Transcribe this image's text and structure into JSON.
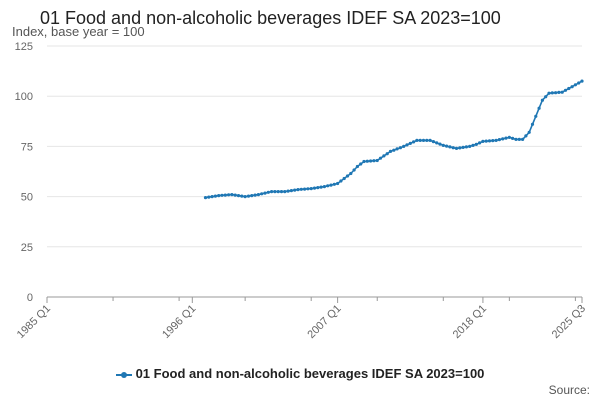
{
  "colors": {
    "series": "#1f77b4",
    "grid": "#e6e6e6",
    "axis": "#999999"
  },
  "chart_data": {
    "type": "line",
    "title": "01 Food and non-alcoholic beverages IDEF SA 2023=100",
    "subtitle": "Index, base year = 100",
    "xlabel": "",
    "ylabel": "",
    "xlim": [
      "1985 Q1",
      "2025 Q3"
    ],
    "ylim": [
      0,
      125
    ],
    "yticks": [
      "0",
      "25",
      "50",
      "75",
      "100",
      "125"
    ],
    "xticks": [
      "1985 Q1",
      "1996 Q1",
      "2007 Q1",
      "2018 Q1",
      "2025 Q3"
    ],
    "grid": "horizontal",
    "legend_position": "bottom",
    "series": [
      {
        "name": "01 Food and non-alcoholic beverages IDEF SA 2023=100",
        "x": [
          1997.0,
          1998.0,
          1999.0,
          2000.0,
          2001.0,
          2002.0,
          2003.0,
          2004.0,
          2005.0,
          2006.0,
          2007.0,
          2008.0,
          2008.5,
          2009.0,
          2010.0,
          2011.0,
          2012.0,
          2013.0,
          2014.0,
          2015.0,
          2016.0,
          2017.0,
          2017.5,
          2018.0,
          2019.0,
          2020.0,
          2020.5,
          2021.0,
          2021.5,
          2022.0,
          2022.5,
          2023.0,
          2024.0,
          2025.5
        ],
        "y": [
          49.5,
          50.5,
          51.0,
          50.0,
          51.0,
          52.5,
          52.5,
          53.5,
          54.0,
          55.0,
          56.5,
          61.5,
          65.0,
          67.5,
          68.0,
          72.5,
          75.0,
          78.0,
          78.0,
          75.5,
          74.0,
          75.0,
          76.0,
          77.5,
          78.0,
          79.5,
          78.5,
          78.5,
          82.0,
          90.0,
          98.0,
          101.5,
          102.0,
          107.5
        ]
      }
    ]
  },
  "legend": {
    "label": "01 Food and non-alcoholic beverages IDEF SA 2023=100"
  },
  "source": {
    "label": "Source:"
  }
}
